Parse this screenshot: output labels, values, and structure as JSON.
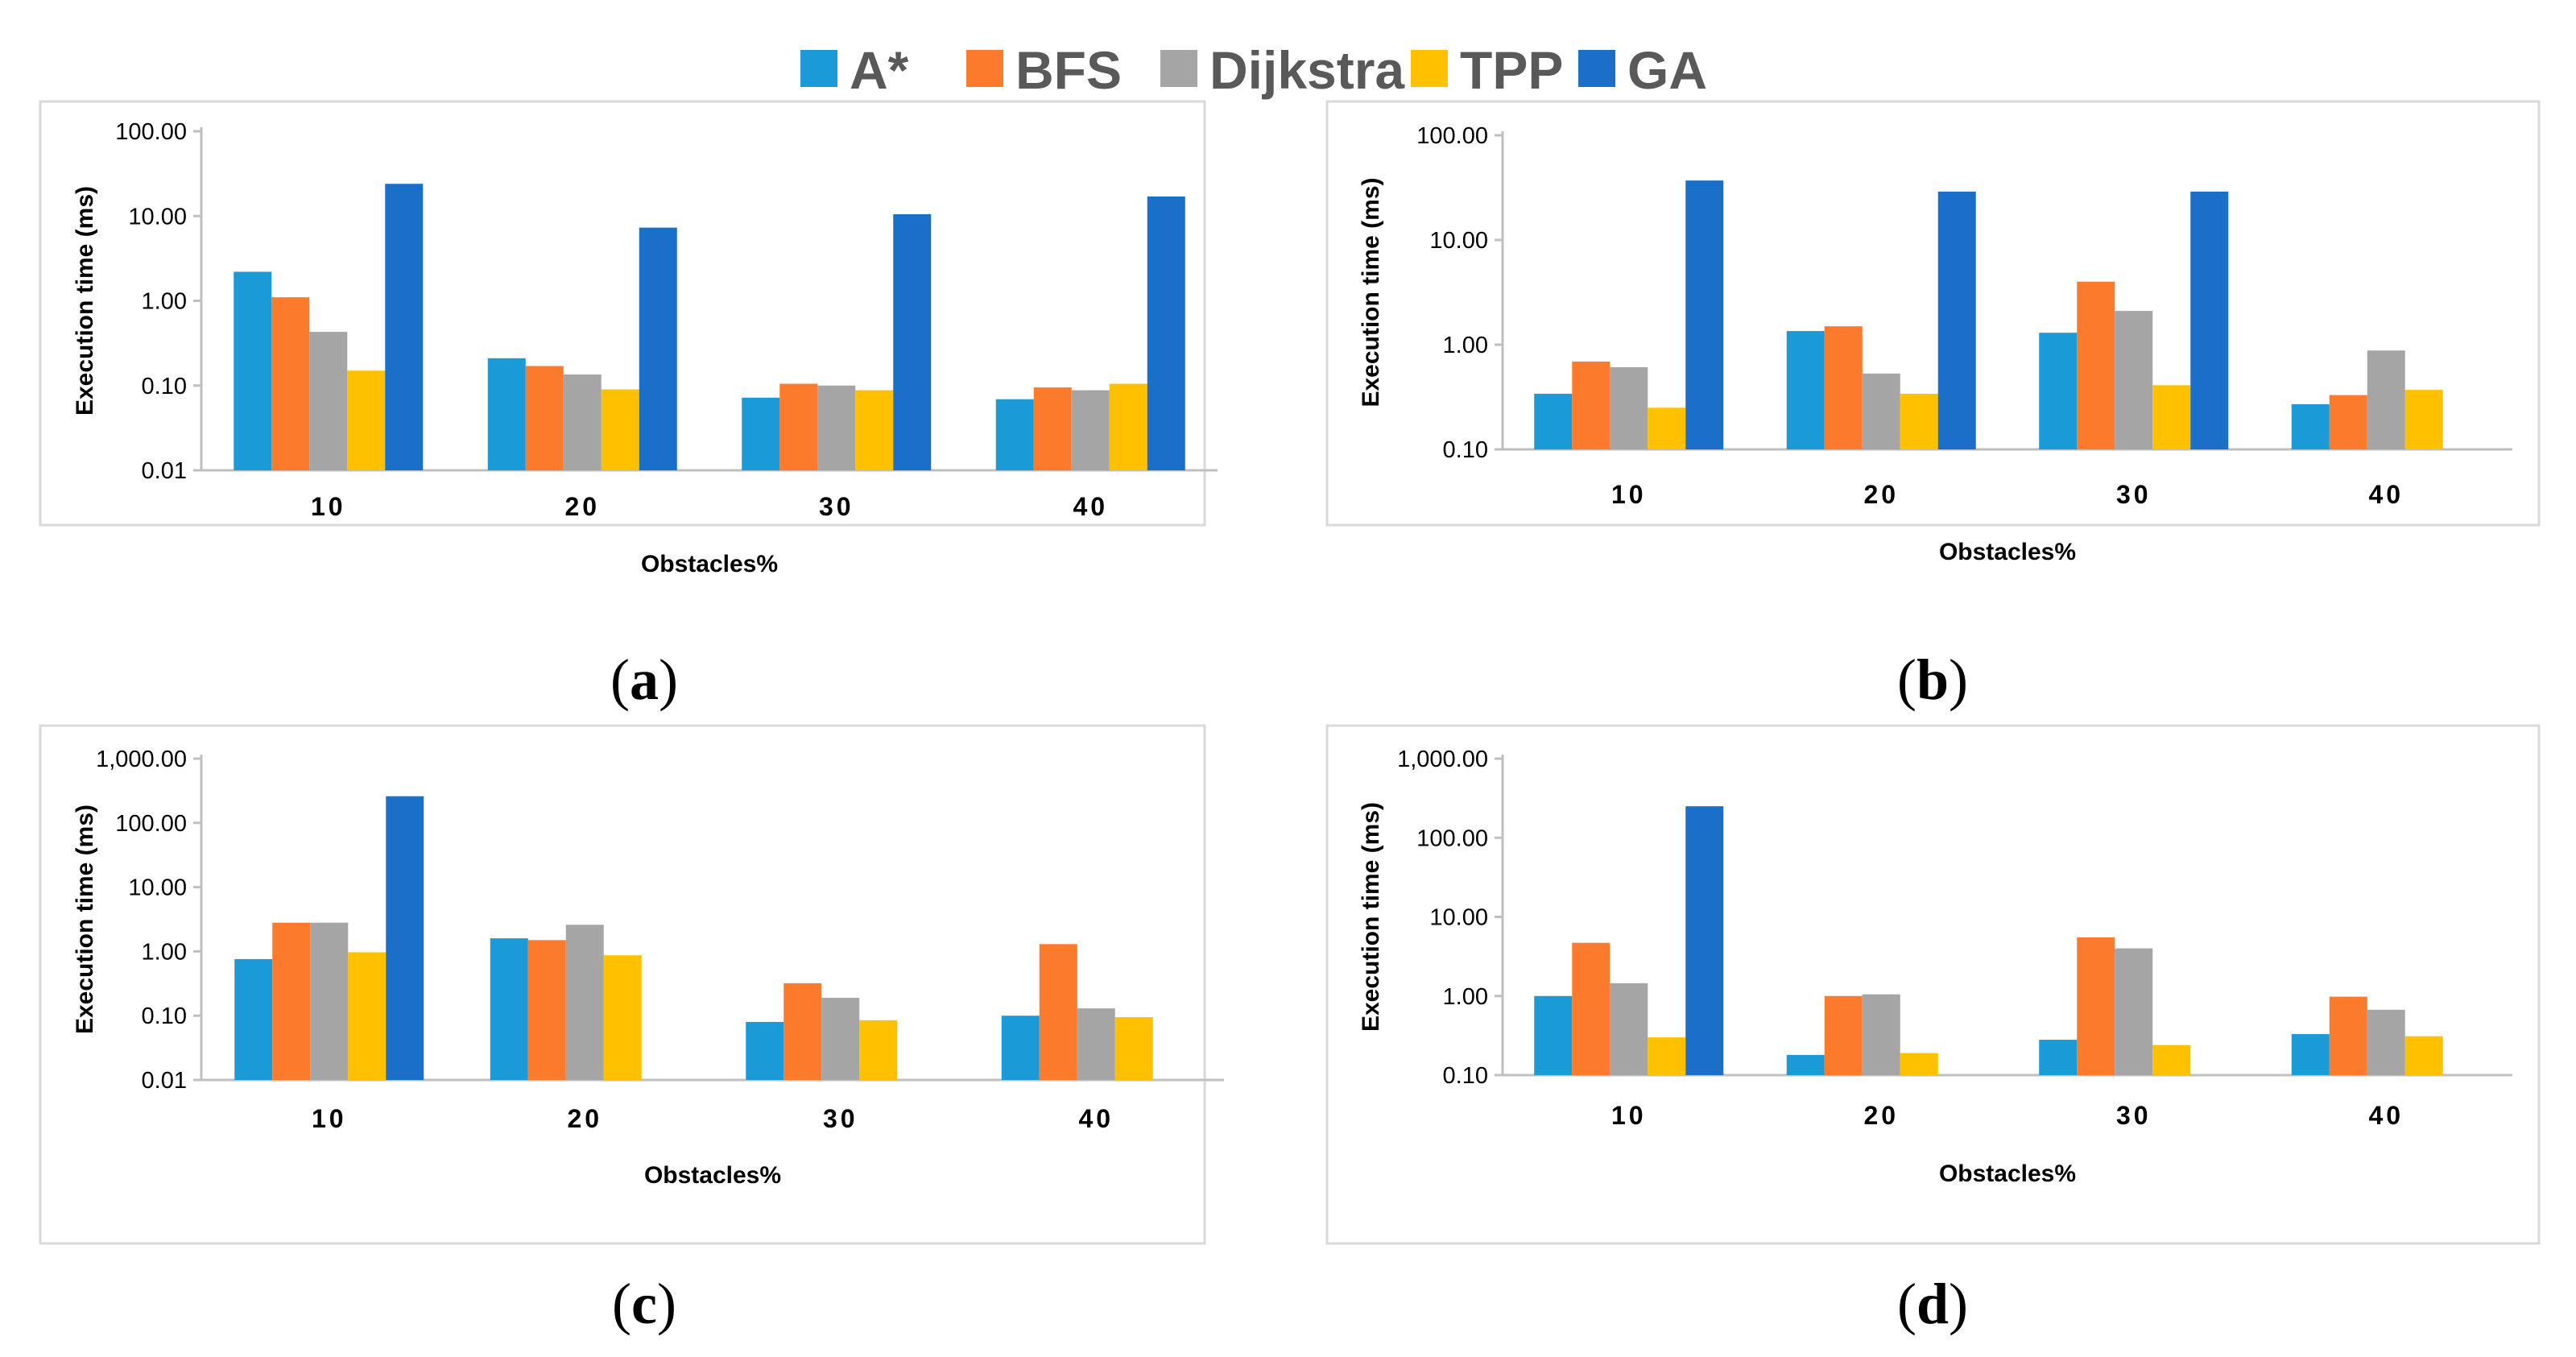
{
  "legend": [
    {
      "name": "A*",
      "color": "#1a9ad6"
    },
    {
      "name": "BFS",
      "color": "#fc7a2b"
    },
    {
      "name": "Dijkstra",
      "color": "#a5a5a5"
    },
    {
      "name": "TPP",
      "color": "#ffc000"
    },
    {
      "name": "GA",
      "color": "#1a6fc9"
    }
  ],
  "chart_data": [
    {
      "id": "a",
      "type": "bar",
      "caption_open": "(",
      "caption_letter": "a",
      "caption_close": ")",
      "xlabel": "Obstacles%",
      "ylabel": "Execution time (ms)",
      "yscale": "log",
      "ylim": [
        0.01,
        100
      ],
      "ytick_values": [
        0.01,
        0.1,
        1,
        10,
        100
      ],
      "ytick_labels": [
        "0.01",
        "0.10",
        "1.00",
        "10.00",
        "100.00"
      ],
      "categories": [
        "10",
        "20",
        "30",
        "40"
      ],
      "series": [
        {
          "name": "A*",
          "values": [
            2.2,
            0.21,
            0.072,
            0.069
          ]
        },
        {
          "name": "BFS",
          "values": [
            1.1,
            0.17,
            0.105,
            0.095
          ]
        },
        {
          "name": "Dijkstra",
          "values": [
            0.43,
            0.135,
            0.1,
            0.088
          ]
        },
        {
          "name": "TPP",
          "values": [
            0.15,
            0.09,
            0.088,
            0.105
          ]
        },
        {
          "name": "GA",
          "values": [
            24,
            7.3,
            10.5,
            17
          ]
        }
      ]
    },
    {
      "id": "b",
      "type": "bar",
      "caption_open": "(",
      "caption_letter": "b",
      "caption_close": ")",
      "xlabel": "Obstacles%",
      "ylabel": "Execution time (ms)",
      "yscale": "log",
      "ylim": [
        0.1,
        100
      ],
      "ytick_values": [
        0.1,
        1,
        10,
        100
      ],
      "ytick_labels": [
        "0.10",
        "1.00",
        "10.00",
        "100.00"
      ],
      "categories": [
        "10",
        "20",
        "30",
        "40"
      ],
      "series": [
        {
          "name": "A*",
          "values": [
            0.34,
            1.35,
            1.3,
            0.27
          ]
        },
        {
          "name": "BFS",
          "values": [
            0.69,
            1.5,
            4.0,
            0.33
          ]
        },
        {
          "name": "Dijkstra",
          "values": [
            0.61,
            0.53,
            2.1,
            0.88
          ]
        },
        {
          "name": "TPP",
          "values": [
            0.25,
            0.34,
            0.41,
            0.37
          ]
        },
        {
          "name": "GA",
          "values": [
            37,
            29,
            29,
            null
          ]
        }
      ]
    },
    {
      "id": "c",
      "type": "bar",
      "caption_open": "(",
      "caption_letter": "c",
      "caption_close": ")",
      "xlabel": "Obstacles%",
      "ylabel": "Execution time (ms)",
      "yscale": "log",
      "ylim": [
        0.01,
        1000
      ],
      "ytick_values": [
        0.01,
        0.1,
        1,
        10,
        100,
        1000
      ],
      "ytick_labels": [
        "0.01",
        "0.10",
        "1.00",
        "10.00",
        "100.00",
        "1,000.00"
      ],
      "categories": [
        "10",
        "20",
        "30",
        "40"
      ],
      "series": [
        {
          "name": "A*",
          "values": [
            0.76,
            1.6,
            0.08,
            0.1
          ]
        },
        {
          "name": "BFS",
          "values": [
            2.8,
            1.5,
            0.32,
            1.3
          ]
        },
        {
          "name": "Dijkstra",
          "values": [
            2.8,
            2.6,
            0.19,
            0.13
          ]
        },
        {
          "name": "TPP",
          "values": [
            0.97,
            0.87,
            0.085,
            0.095
          ]
        },
        {
          "name": "GA",
          "values": [
            260,
            null,
            null,
            null
          ]
        }
      ]
    },
    {
      "id": "d",
      "type": "bar",
      "caption_open": "(",
      "caption_letter": "d",
      "caption_close": ")",
      "xlabel": "Obstacles%",
      "ylabel": "Execution time (ms)",
      "yscale": "log",
      "ylim": [
        0.1,
        1000
      ],
      "ytick_values": [
        0.1,
        1,
        10,
        100,
        1000
      ],
      "ytick_labels": [
        "0.10",
        "1.00",
        "10.00",
        "100.00",
        "1,000.00"
      ],
      "categories": [
        "10",
        "20",
        "30",
        "40"
      ],
      "series": [
        {
          "name": "A*",
          "values": [
            1.0,
            0.18,
            0.28,
            0.33
          ]
        },
        {
          "name": "BFS",
          "values": [
            4.7,
            1.0,
            5.5,
            0.98
          ]
        },
        {
          "name": "Dijkstra",
          "values": [
            1.45,
            1.05,
            4.0,
            0.67
          ]
        },
        {
          "name": "TPP",
          "values": [
            0.3,
            0.19,
            0.24,
            0.31
          ]
        },
        {
          "name": "GA",
          "values": [
            250,
            null,
            null,
            null
          ]
        }
      ]
    }
  ]
}
